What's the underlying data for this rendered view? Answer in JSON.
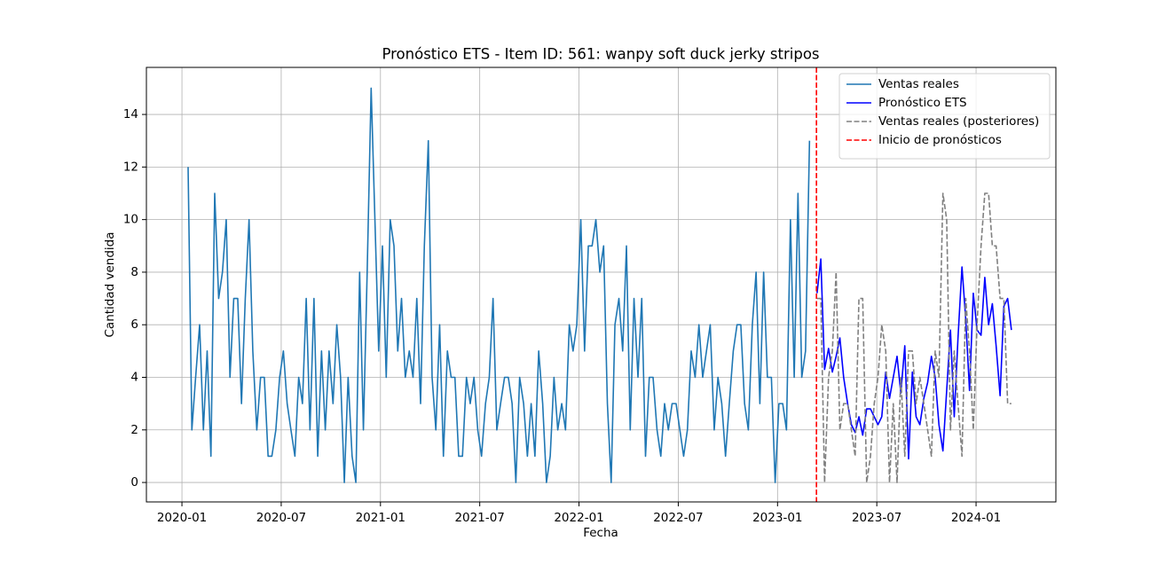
{
  "chart_data": {
    "type": "line",
    "title": "Pronóstico ETS - Item ID: 561: wanpy soft duck jerky stripos",
    "x_label": "Fecha",
    "y_label": "Cantidad vendida",
    "xlim": [
      2019.821,
      2024.402
    ],
    "ylim": [
      -0.74,
      15.79
    ],
    "xticks": [
      {
        "value": 2020,
        "label": "2020-01"
      },
      {
        "value": 2020.5,
        "label": "2020-07"
      },
      {
        "value": 2021,
        "label": "2021-01"
      },
      {
        "value": 2021.5,
        "label": "2021-07"
      },
      {
        "value": 2022,
        "label": "2022-01"
      },
      {
        "value": 2022.5,
        "label": "2022-07"
      },
      {
        "value": 2023,
        "label": "2023-01"
      },
      {
        "value": 2023.5,
        "label": "2023-07"
      },
      {
        "value": 2024,
        "label": "2024-01"
      }
    ],
    "yticks": [
      0,
      2,
      4,
      6,
      8,
      10,
      12,
      14
    ],
    "grid": true,
    "legend": "upper right",
    "series": [
      {
        "name": "Ventas reales",
        "color": "#1f77b4",
        "dashed": false,
        "x": [
          2020.031,
          2020.05,
          2020.069,
          2020.089,
          2020.108,
          2020.127,
          2020.146,
          2020.165,
          2020.185,
          2020.204,
          2020.223,
          2020.242,
          2020.261,
          2020.281,
          2020.3,
          2020.319,
          2020.338,
          2020.357,
          2020.377,
          2020.396,
          2020.415,
          2020.434,
          2020.453,
          2020.473,
          2020.492,
          2020.511,
          2020.53,
          2020.549,
          2020.569,
          2020.588,
          2020.607,
          2020.626,
          2020.645,
          2020.665,
          2020.684,
          2020.703,
          2020.722,
          2020.741,
          2020.761,
          2020.78,
          2020.799,
          2020.818,
          2020.837,
          2020.857,
          2020.876,
          2020.895,
          2020.914,
          2020.933,
          2020.953,
          2020.972,
          2020.991,
          2021.01,
          2021.029,
          2021.049,
          2021.068,
          2021.087,
          2021.106,
          2021.125,
          2021.145,
          2021.164,
          2021.183,
          2021.202,
          2021.221,
          2021.241,
          2021.26,
          2021.279,
          2021.298,
          2021.317,
          2021.337,
          2021.356,
          2021.375,
          2021.394,
          2021.413,
          2021.433,
          2021.452,
          2021.471,
          2021.49,
          2021.509,
          2021.529,
          2021.548,
          2021.567,
          2021.586,
          2021.605,
          2021.625,
          2021.644,
          2021.663,
          2021.682,
          2021.701,
          2021.721,
          2021.74,
          2021.759,
          2021.778,
          2021.797,
          2021.817,
          2021.836,
          2021.855,
          2021.874,
          2021.893,
          2021.913,
          2021.932,
          2021.951,
          2021.97,
          2021.989,
          2022.009,
          2022.028,
          2022.047,
          2022.066,
          2022.085,
          2022.105,
          2022.124,
          2022.143,
          2022.162,
          2022.181,
          2022.201,
          2022.22,
          2022.239,
          2022.258,
          2022.277,
          2022.297,
          2022.316,
          2022.335,
          2022.354,
          2022.373,
          2022.393,
          2022.412,
          2022.431,
          2022.45,
          2022.469,
          2022.489,
          2022.508,
          2022.527,
          2022.546,
          2022.565,
          2022.585,
          2022.604,
          2022.623,
          2022.642,
          2022.661,
          2022.681,
          2022.7,
          2022.719,
          2022.738,
          2022.757,
          2022.777,
          2022.796,
          2022.815,
          2022.834,
          2022.853,
          2022.873,
          2022.892,
          2022.911,
          2022.93,
          2022.949,
          2022.969,
          2022.988,
          2023.007,
          2023.026,
          2023.045,
          2023.065,
          2023.084,
          2023.103,
          2023.122,
          2023.141,
          2023.161
        ],
        "values": [
          12,
          2,
          4,
          6,
          2,
          5,
          1,
          11,
          7,
          8,
          10,
          4,
          7,
          7,
          3,
          7,
          10,
          5,
          2,
          4,
          4,
          1,
          1,
          2,
          4,
          5,
          3,
          2,
          1,
          4,
          3,
          7,
          2,
          7,
          1,
          5,
          2,
          5,
          3,
          6,
          4,
          0,
          4,
          1,
          0,
          8,
          2,
          8,
          15,
          10,
          5,
          9,
          4,
          10,
          9,
          5,
          7,
          4,
          5,
          4,
          7,
          3,
          9,
          13,
          4,
          2,
          6,
          1,
          5,
          4,
          4,
          1,
          1,
          4,
          3,
          4,
          2,
          1,
          3,
          4,
          7,
          2,
          3,
          4,
          4,
          3,
          0,
          4,
          3,
          1,
          3,
          1,
          5,
          3,
          0,
          1,
          4,
          2,
          3,
          2,
          6,
          5,
          6,
          10,
          5,
          9,
          9,
          10,
          8,
          9,
          3,
          0,
          6,
          7,
          5,
          9,
          2,
          7,
          4,
          7,
          1,
          4,
          4,
          2,
          1,
          3,
          2,
          3,
          3,
          2,
          1,
          2,
          5,
          4,
          6,
          4,
          5,
          6,
          2,
          4,
          3,
          1,
          3,
          5,
          6,
          6,
          3,
          2,
          6,
          8,
          3,
          8,
          4,
          4,
          0,
          3,
          3,
          2,
          10,
          4,
          11,
          4,
          5,
          13
        ]
      },
      {
        "name": "Pronóstico ETS",
        "color": "#0000ff",
        "dashed": false,
        "x": [
          2023.199,
          2023.218,
          2023.237,
          2023.257,
          2023.276,
          2023.295,
          2023.314,
          2023.333,
          2023.353,
          2023.372,
          2023.391,
          2023.41,
          2023.429,
          2023.449,
          2023.468,
          2023.487,
          2023.506,
          2023.525,
          2023.545,
          2023.564,
          2023.583,
          2023.602,
          2023.621,
          2023.641,
          2023.66,
          2023.679,
          2023.698,
          2023.717,
          2023.737,
          2023.756,
          2023.775,
          2023.794,
          2023.813,
          2023.833,
          2023.852,
          2023.871,
          2023.89,
          2023.909,
          2023.929,
          2023.948,
          2023.967,
          2023.986,
          2024.005,
          2024.025,
          2024.044,
          2024.063,
          2024.082,
          2024.101,
          2024.121,
          2024.14,
          2024.159,
          2024.178
        ],
        "values": [
          7.2,
          8.5,
          4.3,
          5.1,
          4.2,
          4.8,
          5.5,
          4.0,
          3.0,
          2.2,
          1.9,
          2.5,
          1.8,
          2.8,
          2.8,
          2.5,
          2.2,
          2.5,
          4.2,
          3.2,
          4.0,
          4.8,
          3.4,
          5.2,
          0.9,
          4.2,
          2.5,
          2.2,
          3.2,
          3.8,
          4.8,
          4.0,
          2.2,
          1.2,
          3.5,
          5.8,
          2.5,
          5.5,
          8.2,
          6.2,
          3.5,
          7.2,
          5.8,
          5.6,
          7.8,
          6.0,
          6.8,
          5.2,
          3.3,
          6.7,
          7.0,
          5.8
        ]
      },
      {
        "name": "Ventas reales (posteriores)",
        "color": "#808080",
        "dashed": true,
        "x": [
          2023.199,
          2023.218,
          2023.237,
          2023.257,
          2023.276,
          2023.295,
          2023.314,
          2023.333,
          2023.353,
          2023.372,
          2023.391,
          2023.41,
          2023.429,
          2023.449,
          2023.468,
          2023.487,
          2023.506,
          2023.525,
          2023.545,
          2023.564,
          2023.583,
          2023.602,
          2023.621,
          2023.641,
          2023.66,
          2023.679,
          2023.698,
          2023.717,
          2023.737,
          2023.756,
          2023.775,
          2023.794,
          2023.813,
          2023.833,
          2023.852,
          2023.871,
          2023.89,
          2023.909,
          2023.929,
          2023.948,
          2023.967,
          2023.986,
          2024.005,
          2024.025,
          2024.044,
          2024.063,
          2024.082,
          2024.101,
          2024.121,
          2024.14,
          2024.159,
          2024.178
        ],
        "values": [
          7,
          7,
          0,
          4,
          5,
          8,
          2,
          3,
          3,
          2,
          1,
          7,
          7,
          0,
          1,
          3,
          4,
          6,
          5,
          0,
          3,
          0,
          4,
          1,
          5,
          5,
          3,
          4,
          3,
          2,
          1,
          5,
          4,
          11,
          10,
          2,
          5,
          3,
          1,
          7,
          5,
          2,
          6,
          9,
          11,
          11,
          9,
          9,
          7,
          7,
          3,
          3
        ]
      }
    ],
    "vlines": [
      {
        "name": "Inicio de pronósticos",
        "color": "#ff0000",
        "dashed": true,
        "x": 2023.196
      }
    ]
  }
}
